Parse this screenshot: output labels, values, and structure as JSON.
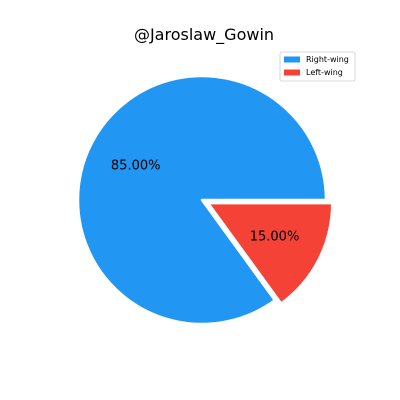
{
  "chart_data": {
    "type": "pie",
    "title": "@Jaroslaw_Gowin",
    "categories": [
      "Right-wing",
      "Left-wing"
    ],
    "values": [
      85.0,
      15.0
    ],
    "labels": [
      "85.00%",
      "15.00%"
    ],
    "colors": [
      "#2196f3",
      "#f44336"
    ],
    "explode": [
      false,
      true
    ],
    "legend_position": "top-right"
  }
}
